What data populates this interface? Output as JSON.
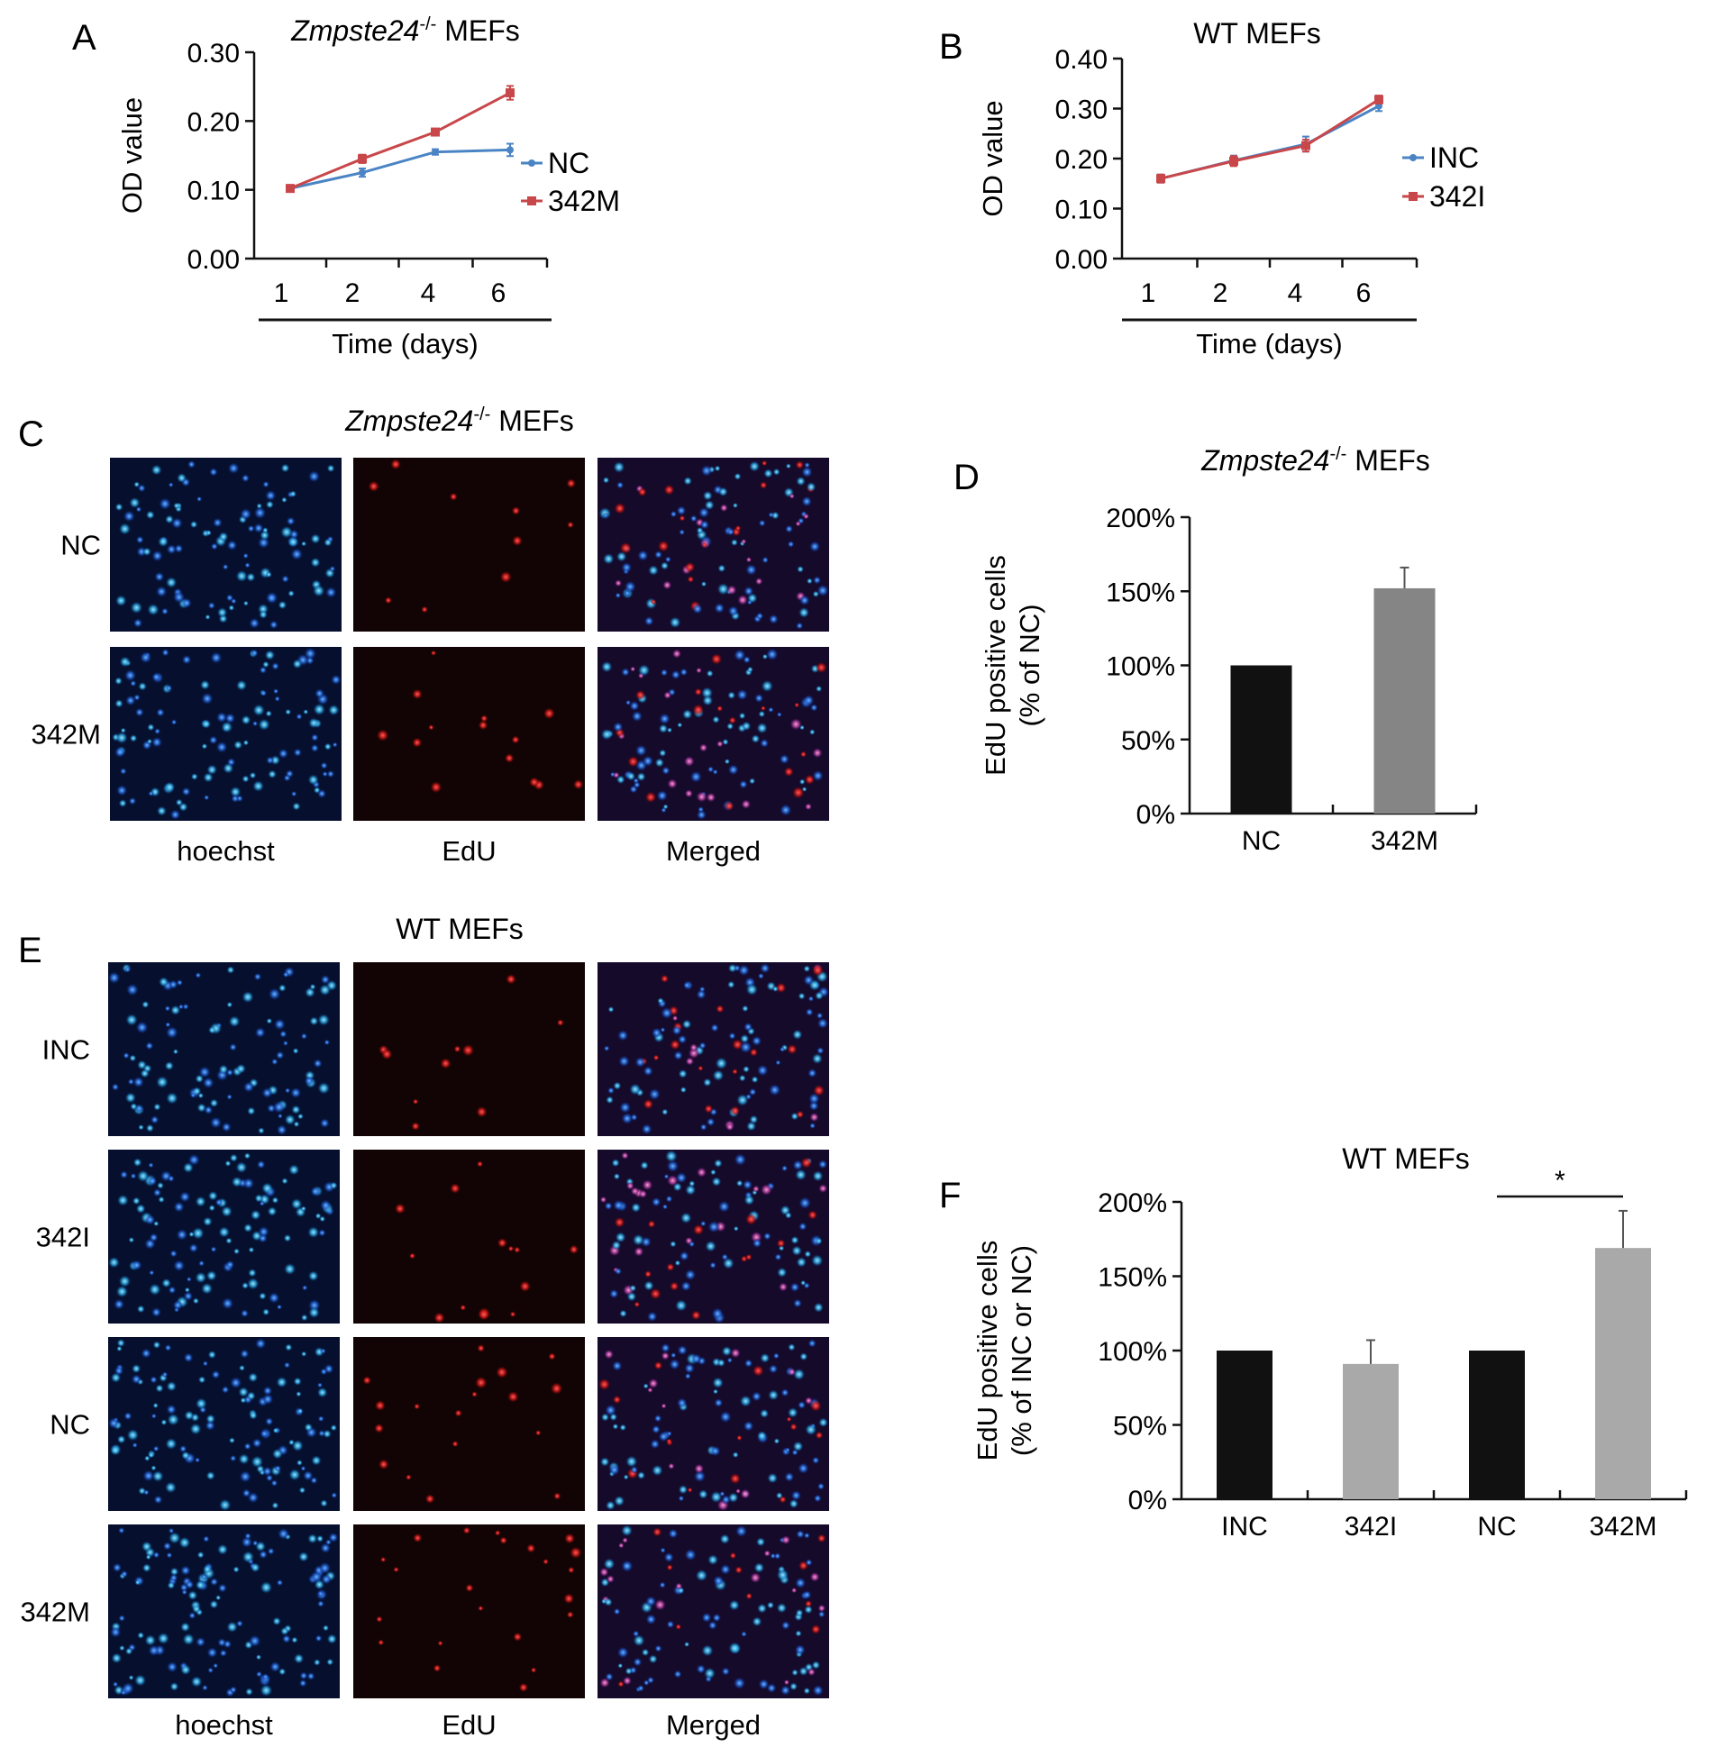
{
  "panels": {
    "A": {
      "letter": "A",
      "title_italic": "Zmpste24",
      "title_sup": "-/-",
      "title_rest": " MEFs",
      "chart_data": {
        "type": "line",
        "categories": [
          "1",
          "2",
          "4",
          "6"
        ],
        "series": [
          {
            "name": "NC",
            "color": "#4a84c4",
            "values": [
              0.102,
              0.125,
              0.155,
              0.158
            ],
            "errors": [
              0.003,
              0.006,
              0.004,
              0.009
            ]
          },
          {
            "name": "342M",
            "color": "#c8474a",
            "values": [
              0.102,
              0.145,
              0.184,
              0.241
            ],
            "errors": [
              0.003,
              0.006,
              0.004,
              0.01
            ]
          }
        ],
        "xlabel": "Time (days)",
        "ylabel": "OD value",
        "ylim": [
          0,
          0.3
        ],
        "yticks": [
          "0.00",
          "0.10",
          "0.20",
          "0.30"
        ],
        "ytick_values": [
          0,
          0.1,
          0.2,
          0.3
        ],
        "legend": "right"
      }
    },
    "B": {
      "letter": "B",
      "title": "WT MEFs",
      "chart_data": {
        "type": "line",
        "categories": [
          "1",
          "2",
          "4",
          "6"
        ],
        "series": [
          {
            "name": "INC",
            "color": "#4a84c4",
            "values": [
              0.16,
              0.196,
              0.229,
              0.305
            ],
            "errors": [
              0.008,
              0.01,
              0.015,
              0.01
            ]
          },
          {
            "name": "342I",
            "color": "#c8474a",
            "values": [
              0.16,
              0.195,
              0.226,
              0.318
            ],
            "errors": [
              0.008,
              0.01,
              0.012,
              0.008
            ]
          }
        ],
        "xlabel": "Time (days)",
        "ylabel": "OD value",
        "ylim": [
          0,
          0.4
        ],
        "yticks": [
          "0.00",
          "0.10",
          "0.20",
          "0.30",
          "0.40"
        ],
        "ytick_values": [
          0,
          0.1,
          0.2,
          0.3,
          0.4
        ],
        "legend": "right"
      }
    },
    "C": {
      "letter": "C",
      "title_italic": "Zmpste24",
      "title_sup": "-/-",
      "title_rest": " MEFs",
      "rows": [
        "NC",
        "342M"
      ],
      "cols": [
        "hoechst",
        "EdU",
        "Merged"
      ]
    },
    "D": {
      "letter": "D",
      "title_italic": "Zmpste24",
      "title_sup": "-/-",
      "title_rest": " MEFs",
      "chart_data": {
        "type": "bar",
        "categories": [
          "NC",
          "342M"
        ],
        "values": [
          100,
          152
        ],
        "errors": [
          0,
          14
        ],
        "colors": [
          "#111111",
          "#858585"
        ],
        "ylabel_line1": "EdU positive cells",
        "ylabel_line2": "(% of NC)",
        "ylim": [
          0,
          200
        ],
        "yticks": [
          "0%",
          "50%",
          "100%",
          "150%",
          "200%"
        ],
        "ytick_values": [
          0,
          50,
          100,
          150,
          200
        ]
      }
    },
    "E": {
      "letter": "E",
      "title": "WT MEFs",
      "rows": [
        "INC",
        "342I",
        "NC",
        "342M"
      ],
      "cols": [
        "hoechst",
        "EdU",
        "Merged"
      ]
    },
    "F": {
      "letter": "F",
      "title": "WT MEFs",
      "chart_data": {
        "type": "bar",
        "categories": [
          "INC",
          "342I",
          "NC",
          "342M"
        ],
        "values": [
          100,
          91,
          100,
          169
        ],
        "errors": [
          0,
          16,
          0,
          25
        ],
        "colors": [
          "#111111",
          "#a9a9a9",
          "#111111",
          "#a9a9a9"
        ],
        "ylabel_line1": "EdU positive cells",
        "ylabel_line2": "(% of INC or NC)",
        "ylim": [
          0,
          200
        ],
        "yticks": [
          "0%",
          "50%",
          "100%",
          "150%",
          "200%"
        ],
        "ytick_values": [
          0,
          50,
          100,
          150,
          200
        ],
        "significance": {
          "from": "NC",
          "to": "342M",
          "label": "*"
        }
      }
    }
  }
}
